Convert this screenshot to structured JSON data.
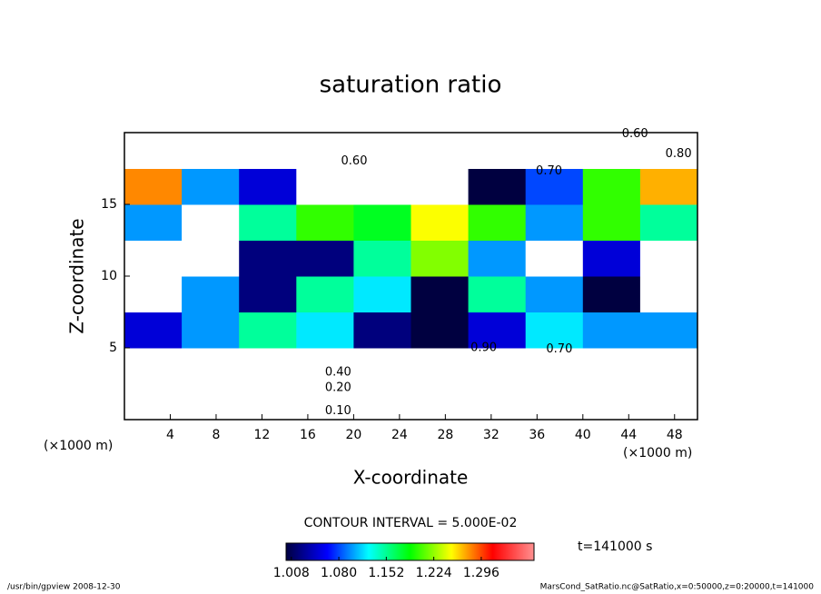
{
  "chart_data": {
    "type": "contour",
    "title": "saturation ratio",
    "xlabel": "X-coordinate",
    "ylabel": "Z-coordinate",
    "xunit": "(×1000 m)",
    "yunit": "(×1000 m)",
    "xlim": [
      0,
      50
    ],
    "ylim": [
      0,
      20
    ],
    "xticks": [
      4,
      8,
      12,
      16,
      20,
      24,
      28,
      32,
      36,
      40,
      44,
      48
    ],
    "yticks": [
      5,
      10,
      15
    ],
    "field": {
      "x": [
        2.5,
        7.5,
        12.5,
        17.5,
        22.5,
        27.5,
        32.5,
        37.5,
        42.5,
        47.5
      ],
      "z": [
        1.25,
        3.75,
        6.25,
        8.75,
        11.25,
        13.75,
        16.25,
        18.75
      ],
      "values": [
        [
          0.2,
          0.2,
          0.2,
          0.2,
          0.2,
          0.2,
          0.2,
          0.2,
          0.2,
          0.2
        ],
        [
          0.6,
          0.6,
          0.6,
          0.5,
          0.5,
          0.6,
          0.6,
          0.6,
          0.6,
          0.6
        ],
        [
          1.05,
          1.1,
          1.15,
          1.12,
          1.02,
          1.0,
          1.05,
          1.12,
          1.1,
          1.1
        ],
        [
          0.95,
          1.1,
          1.02,
          1.15,
          1.12,
          1.0,
          1.15,
          1.1,
          1.0,
          0.95
        ],
        [
          0.95,
          0.95,
          1.02,
          1.02,
          1.15,
          1.22,
          1.1,
          0.98,
          1.05,
          0.95
        ],
        [
          1.1,
          0.95,
          1.15,
          1.2,
          1.18,
          1.25,
          1.2,
          1.1,
          1.2,
          1.15
        ],
        [
          1.28,
          1.1,
          1.05,
          0.9,
          0.9,
          0.95,
          1.0,
          1.08,
          1.2,
          1.27
        ],
        [
          0.8,
          0.8,
          0.8,
          0.8,
          0.8,
          0.8,
          0.8,
          0.8,
          0.8,
          0.8
        ]
      ]
    },
    "contour_labels": [
      {
        "value": 0.6,
        "label": "0.60",
        "x": 43.4,
        "z": 19.9
      },
      {
        "value": 0.8,
        "label": "0.80",
        "x": 47.2,
        "z": 18.5
      },
      {
        "value": 0.6,
        "label": "0.60",
        "x": 18.9,
        "z": 18.0
      },
      {
        "value": 0.7,
        "label": "0.70",
        "x": 35.9,
        "z": 17.3
      },
      {
        "value": 0.9,
        "label": "0.90",
        "x": 30.2,
        "z": 5.0
      },
      {
        "value": 0.7,
        "label": "0.70",
        "x": 36.8,
        "z": 4.9
      },
      {
        "value": 0.4,
        "label": "0.40",
        "x": 17.5,
        "z": 3.3
      },
      {
        "value": 0.2,
        "label": "0.20",
        "x": 17.5,
        "z": 2.2
      },
      {
        "value": 0.1,
        "label": "0.10",
        "x": 17.5,
        "z": 0.6
      }
    ],
    "contour_interval": "CONTOUR INTERVAL = 5.000E-02",
    "colorbar": {
      "lim": [
        1.0,
        1.376
      ],
      "colors": [
        "#000040",
        "#0000ff",
        "#00ffff",
        "#00ff00",
        "#ffff00",
        "#ff0000",
        "#ff9090"
      ],
      "ticks": [
        1.008,
        {
          "value": 1.08,
          "label": "1.080"
        },
        1.152,
        1.224,
        1.296
      ]
    },
    "time": "t=141000 s",
    "footer_left": "/usr/bin/gpview  2008-12-30",
    "footer_right": "MarsCond_SatRatio.nc@SatRatio,x=0:50000,z=0:20000,t=141000"
  }
}
